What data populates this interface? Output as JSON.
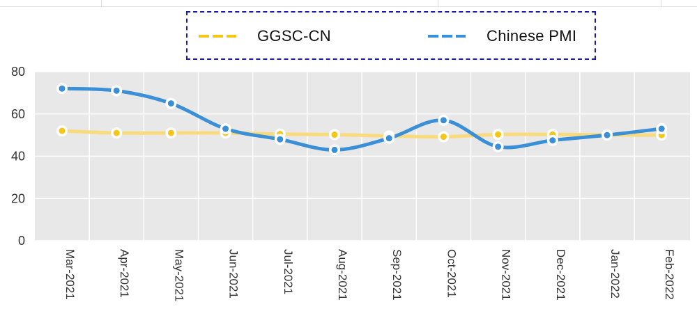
{
  "chart_data": {
    "type": "line",
    "title": "",
    "xlabel": "",
    "ylabel": "",
    "categories": [
      "Mar-2021",
      "Apr-2021",
      "May-2021",
      "Jun-2021",
      "Jul-2021",
      "Aug-2021",
      "Sep-2021",
      "Oct-2021",
      "Nov-2021",
      "Dec-2021",
      "Jan-2022",
      "Feb-2022"
    ],
    "ylim": [
      0,
      80
    ],
    "yticks": [
      "0",
      "20",
      "40",
      "60",
      "80"
    ],
    "grid": true,
    "legend_position": "top-center",
    "series": [
      {
        "name": "GGSC-CN",
        "color": "#f5c518",
        "line_color": "#f9db7d",
        "values": [
          52,
          51,
          51,
          51,
          50.5,
          50.2,
          49.6,
          49.2,
          50.3,
          50.3,
          50.1,
          50
        ]
      },
      {
        "name": "Chinese PMI",
        "color": "#3a8fd6",
        "line_color": "#3a8fd6",
        "values": [
          72,
          71,
          65,
          53,
          48,
          43,
          48.5,
          57,
          44.5,
          47.5,
          50,
          53
        ]
      }
    ]
  }
}
